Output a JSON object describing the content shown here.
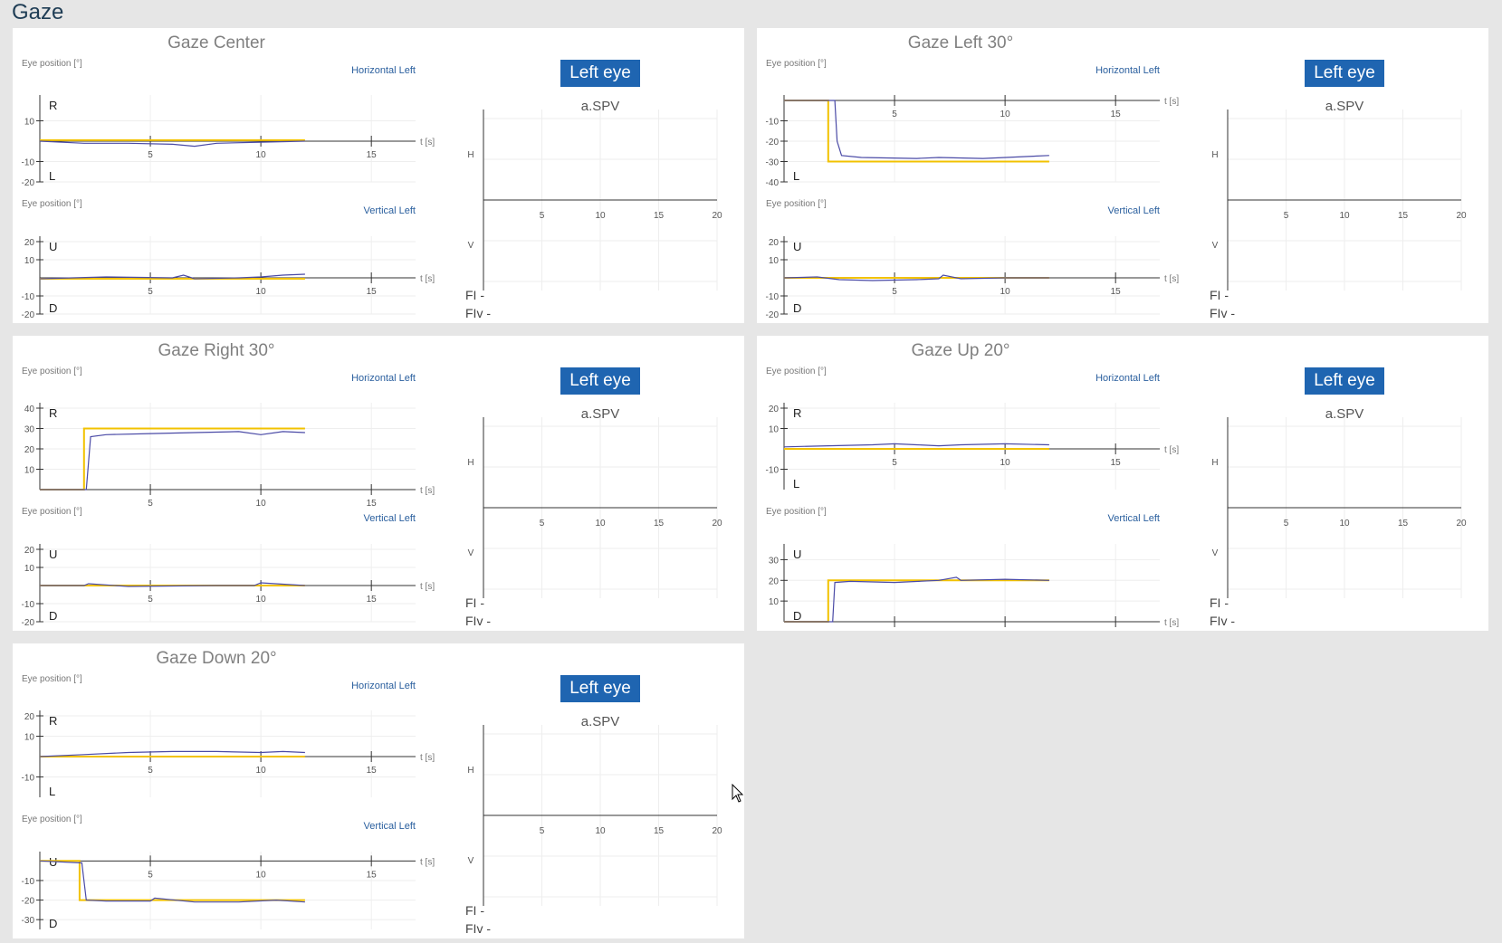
{
  "page": {
    "title": "Gaze"
  },
  "common": {
    "eye_position_label": "Eye position [°]",
    "horizontal_series": "Horizontal Left",
    "vertical_series": "Vertical Left",
    "t_label": "t [s]",
    "eye_button": "Left eye",
    "spv_title": "a.SPV",
    "h_label": "H",
    "v_label": "V",
    "fi_label": "FI -",
    "fiv_label": "FIv -",
    "colors": {
      "eye_trace": "#4a4aa6",
      "target_trace": "#f2c200",
      "button": "#1f65b1"
    }
  },
  "panels": [
    {
      "title": "Gaze Center",
      "chart_data": [
        {
          "type": "line",
          "name": "horizontal",
          "ylim": [
            -20,
            20
          ],
          "y_ticks": [
            10,
            -10,
            -20
          ],
          "dir_top": "R",
          "dir_bottom": "L",
          "xlim": [
            0,
            17
          ],
          "x_ticks": [
            5,
            10,
            15
          ],
          "series": [
            {
              "name": "target",
              "x": [
                0,
                12
              ],
              "y": [
                0.5,
                0.5
              ]
            },
            {
              "name": "eye",
              "x": [
                0,
                2,
                4,
                6,
                7,
                8,
                10,
                12
              ],
              "y": [
                0,
                -1,
                -1,
                -1.5,
                -2.5,
                -1,
                -0.5,
                0
              ]
            }
          ]
        },
        {
          "type": "line",
          "name": "vertical",
          "ylim": [
            -20,
            20
          ],
          "y_ticks": [
            20,
            10,
            -10,
            -20
          ],
          "dir_top": "U",
          "dir_bottom": "D",
          "xlim": [
            0,
            17
          ],
          "x_ticks": [
            5,
            10,
            15
          ],
          "series": [
            {
              "name": "target",
              "x": [
                0,
                12
              ],
              "y": [
                -0.5,
                -0.5
              ]
            },
            {
              "name": "eye",
              "x": [
                0,
                3,
                6,
                6.5,
                7,
                9,
                10,
                11,
                12
              ],
              "y": [
                -0.5,
                0.5,
                0,
                1.5,
                -0.5,
                0,
                0.5,
                1.5,
                2
              ]
            }
          ]
        },
        {
          "type": "scatter",
          "name": "spv",
          "xlim": [
            0,
            20
          ],
          "x_ticks": [
            5,
            10,
            15,
            20
          ],
          "series": []
        }
      ]
    },
    {
      "title": "Gaze Left 30°",
      "chart_data": [
        {
          "type": "line",
          "name": "horizontal",
          "ylim": [
            -40,
            0
          ],
          "y_ticks": [
            -10,
            -20,
            -30,
            -40
          ],
          "dir_top": "",
          "dir_bottom": "L",
          "xlim": [
            0,
            17
          ],
          "x_ticks": [
            5,
            10,
            15
          ],
          "series": [
            {
              "name": "target",
              "x": [
                0,
                2,
                2,
                12
              ],
              "y": [
                0,
                0,
                -30,
                -30
              ]
            },
            {
              "name": "eye",
              "x": [
                0,
                2.3,
                2.4,
                2.6,
                3.5,
                6,
                7,
                9,
                12
              ],
              "y": [
                0,
                0,
                -20,
                -27,
                -28,
                -28.5,
                -28,
                -28.5,
                -27
              ]
            }
          ]
        },
        {
          "type": "line",
          "name": "vertical",
          "ylim": [
            -20,
            20
          ],
          "y_ticks": [
            20,
            10,
            -10,
            -20
          ],
          "dir_top": "U",
          "dir_bottom": "D",
          "xlim": [
            0,
            17
          ],
          "x_ticks": [
            5,
            10,
            15
          ],
          "series": [
            {
              "name": "target",
              "x": [
                0,
                7,
                7.3,
                12
              ],
              "y": [
                0,
                0,
                0,
                0
              ]
            },
            {
              "name": "eye",
              "x": [
                0,
                1.5,
                2.5,
                4,
                6,
                7,
                7.2,
                8,
                10,
                12
              ],
              "y": [
                0,
                0.5,
                -1,
                -1.5,
                -1,
                -0.5,
                1.5,
                -0.5,
                0,
                0
              ]
            }
          ]
        },
        {
          "type": "scatter",
          "name": "spv",
          "xlim": [
            0,
            20
          ],
          "x_ticks": [
            5,
            10,
            15,
            20
          ],
          "series": []
        }
      ]
    },
    {
      "title": "Gaze Right 30°",
      "chart_data": [
        {
          "type": "line",
          "name": "horizontal",
          "ylim": [
            0,
            40
          ],
          "y_ticks": [
            40,
            30,
            20,
            10
          ],
          "dir_top": "R",
          "dir_bottom": "",
          "xlim": [
            0,
            17
          ],
          "x_ticks": [
            5,
            10,
            15
          ],
          "series": [
            {
              "name": "target",
              "x": [
                0,
                2,
                2,
                12
              ],
              "y": [
                0,
                0,
                30,
                30
              ]
            },
            {
              "name": "eye",
              "x": [
                0,
                2.1,
                2.3,
                3,
                5,
                7,
                9,
                10,
                11,
                12
              ],
              "y": [
                0,
                0,
                26,
                27,
                27.5,
                28,
                28.5,
                27,
                28.5,
                28
              ]
            }
          ]
        },
        {
          "type": "line",
          "name": "vertical",
          "ylim": [
            -20,
            20
          ],
          "y_ticks": [
            20,
            10,
            -10,
            -20
          ],
          "dir_top": "U",
          "dir_bottom": "D",
          "xlim": [
            0,
            17
          ],
          "x_ticks": [
            5,
            10,
            15
          ],
          "series": [
            {
              "name": "target",
              "x": [
                0,
                12
              ],
              "y": [
                0,
                0
              ]
            },
            {
              "name": "eye",
              "x": [
                0,
                2,
                2.2,
                4,
                8,
                9.7,
                10,
                12
              ],
              "y": [
                0,
                0,
                1,
                -0.5,
                0,
                0,
                1.5,
                0
              ]
            }
          ]
        },
        {
          "type": "scatter",
          "name": "spv",
          "xlim": [
            0,
            20
          ],
          "x_ticks": [
            5,
            10,
            15,
            20
          ],
          "series": []
        }
      ]
    },
    {
      "title": "Gaze Up 20°",
      "chart_data": [
        {
          "type": "line",
          "name": "horizontal",
          "ylim": [
            -20,
            20
          ],
          "y_ticks": [
            20,
            10,
            -10
          ],
          "dir_top": "R",
          "dir_bottom": "L",
          "xlim": [
            0,
            17
          ],
          "x_ticks": [
            5,
            10,
            15
          ],
          "series": [
            {
              "name": "target",
              "x": [
                0,
                12
              ],
              "y": [
                0,
                0
              ]
            },
            {
              "name": "eye",
              "x": [
                0,
                2,
                4,
                5,
                6,
                7,
                8,
                10,
                12
              ],
              "y": [
                1,
                1.5,
                2,
                2.5,
                2,
                1.5,
                2,
                2.5,
                2
              ]
            }
          ]
        },
        {
          "type": "line",
          "name": "vertical",
          "ylim": [
            0,
            35
          ],
          "y_ticks": [
            30,
            20,
            10
          ],
          "dir_top": "U",
          "dir_bottom": "D",
          "xlim": [
            0,
            17
          ],
          "x_ticks": [
            5,
            10,
            15
          ],
          "series": [
            {
              "name": "target",
              "x": [
                0,
                2,
                2,
                12
              ],
              "y": [
                0,
                0,
                20,
                20
              ]
            },
            {
              "name": "eye",
              "x": [
                0,
                2.2,
                2.3,
                3,
                5,
                7,
                7.8,
                8,
                10,
                12
              ],
              "y": [
                0,
                0,
                19,
                19.5,
                19,
                20,
                21.5,
                20,
                20.5,
                20
              ]
            }
          ]
        },
        {
          "type": "scatter",
          "name": "spv",
          "xlim": [
            0,
            20
          ],
          "x_ticks": [
            5,
            10,
            15,
            20
          ],
          "series": []
        }
      ]
    },
    {
      "title": "Gaze Down 20°",
      "chart_data": [
        {
          "type": "line",
          "name": "horizontal",
          "ylim": [
            -20,
            20
          ],
          "y_ticks": [
            20,
            10,
            -10
          ],
          "dir_top": "R",
          "dir_bottom": "L",
          "xlim": [
            0,
            17
          ],
          "x_ticks": [
            5,
            10,
            15
          ],
          "series": [
            {
              "name": "target",
              "x": [
                0,
                12
              ],
              "y": [
                0,
                0
              ]
            },
            {
              "name": "eye",
              "x": [
                0,
                2,
                4,
                6,
                8,
                10,
                11,
                12
              ],
              "y": [
                0,
                1,
                2,
                2.5,
                2.5,
                2,
                2.5,
                2
              ]
            }
          ]
        },
        {
          "type": "line",
          "name": "vertical",
          "ylim": [
            -35,
            2
          ],
          "y_ticks": [
            -10,
            -20,
            -30
          ],
          "dir_top": "U",
          "dir_bottom": "D",
          "xlim": [
            0,
            17
          ],
          "x_ticks": [
            5,
            10,
            15
          ],
          "series": [
            {
              "name": "target",
              "x": [
                0,
                1.8,
                1.8,
                12
              ],
              "y": [
                0,
                0,
                -20,
                -20
              ]
            },
            {
              "name": "eye",
              "x": [
                0,
                1.9,
                2.1,
                3,
                5,
                5.2,
                7,
                9,
                10.7,
                12
              ],
              "y": [
                0,
                -1,
                -20,
                -20.5,
                -20.5,
                -19,
                -21,
                -21,
                -20,
                -21
              ]
            }
          ]
        },
        {
          "type": "scatter",
          "name": "spv",
          "xlim": [
            0,
            20
          ],
          "x_ticks": [
            5,
            10,
            15,
            20
          ],
          "series": []
        }
      ]
    }
  ]
}
